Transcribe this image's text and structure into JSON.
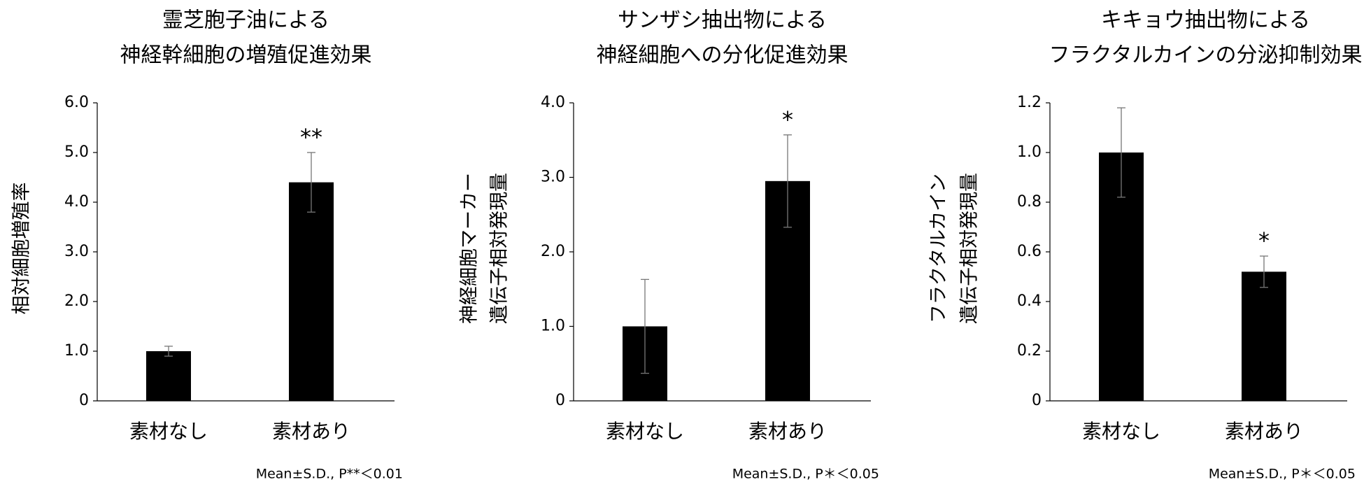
{
  "chart_data": [
    {
      "type": "bar",
      "title": [
        "霊芝胞子油による",
        "神経幹細胞の増殖促進効果"
      ],
      "y_label": [
        "相対細胞増殖率"
      ],
      "categories": [
        "素材なし",
        "素材あり"
      ],
      "values": [
        1.0,
        4.4
      ],
      "errors": [
        0.1,
        0.6
      ],
      "significance": [
        null,
        "**"
      ],
      "color": "#000000",
      "ylim": [
        0,
        6
      ],
      "yticks": [
        0,
        {
          "value": 1,
          "label": "1.0"
        },
        {
          "value": 2,
          "label": "2.0"
        },
        {
          "value": 3,
          "label": "3.0"
        },
        {
          "value": 4,
          "label": "4.0"
        },
        {
          "value": 5,
          "label": "5.0"
        },
        {
          "value": 6,
          "label": "6.0"
        }
      ],
      "footnote": "Mean±S.D., P**＜0.01"
    },
    {
      "type": "bar",
      "title": [
        "サンザシ抽出物による",
        "神経細胞への分化促進効果"
      ],
      "y_label": [
        "神経細胞マーカー",
        "遺伝子相対発現量"
      ],
      "categories": [
        "素材なし",
        "素材あり"
      ],
      "values": [
        1.0,
        2.95
      ],
      "errors": [
        0.63,
        0.62
      ],
      "significance": [
        null,
        "*"
      ],
      "color": "#000000",
      "ylim": [
        0,
        4
      ],
      "yticks": [
        0,
        {
          "value": 1,
          "label": "1.0"
        },
        {
          "value": 2,
          "label": "2.0"
        },
        {
          "value": 3,
          "label": "3.0"
        },
        {
          "value": 4,
          "label": "4.0"
        }
      ],
      "footnote": "Mean±S.D., P＊＜0.05"
    },
    {
      "type": "bar",
      "title": [
        "キキョウ抽出物による",
        "フラクタルカインの分泌抑制効果"
      ],
      "y_label": [
        "フラクタルカイン",
        "遺伝子相対発現量"
      ],
      "categories": [
        "素材なし",
        "素材あり"
      ],
      "values": [
        1.0,
        0.52
      ],
      "errors": [
        0.18,
        0.063
      ],
      "significance": [
        null,
        "*"
      ],
      "color": "#000000",
      "ylim": [
        0,
        1.2
      ],
      "yticks": [
        0,
        0.2,
        0.4,
        0.6,
        0.8,
        {
          "value": 1,
          "label": "1.0"
        },
        1.2
      ],
      "footnote": "Mean±S.D., P＊＜0.05"
    }
  ]
}
